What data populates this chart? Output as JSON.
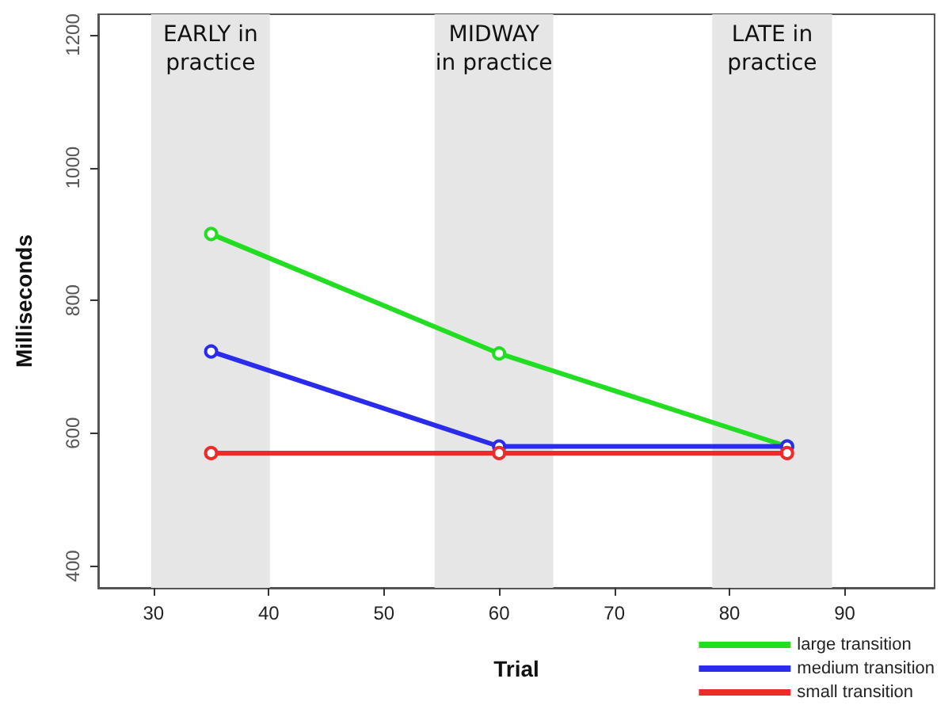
{
  "chart_data": {
    "type": "line",
    "xlabel": "Trial",
    "ylabel": "Milliseconds",
    "x": [
      35,
      60,
      85
    ],
    "series": [
      {
        "name": "large transition",
        "color": "#22dd22",
        "values": [
          900,
          720,
          580
        ]
      },
      {
        "name": "medium transition",
        "color": "#2b2bee",
        "values": [
          723,
          580,
          580
        ]
      },
      {
        "name": "small transition",
        "color": "#ee2b2b",
        "values": [
          570,
          570,
          570
        ]
      }
    ],
    "xlim": [
      25.2,
      97.8
    ],
    "xticks": [
      30,
      40,
      50,
      60,
      70,
      80,
      90
    ],
    "ylim": [
      367,
      1231
    ],
    "yticks": [
      400,
      600,
      800,
      1000,
      1200
    ],
    "bands": [
      {
        "axis": "x",
        "from": 29.8,
        "to": 40.1,
        "label": "EARLY in\npractice",
        "color": "#e6e6e6"
      },
      {
        "axis": "x",
        "from": 54.4,
        "to": 64.7,
        "label": "MIDWAY\nin practice",
        "color": "#e6e6e6"
      },
      {
        "axis": "x",
        "from": 78.5,
        "to": 88.9,
        "label": "LATE in\npractice",
        "color": "#e6e6e6"
      }
    ],
    "grid": false,
    "legend": "bottom right",
    "marker": "circle",
    "line_style": "solid"
  }
}
